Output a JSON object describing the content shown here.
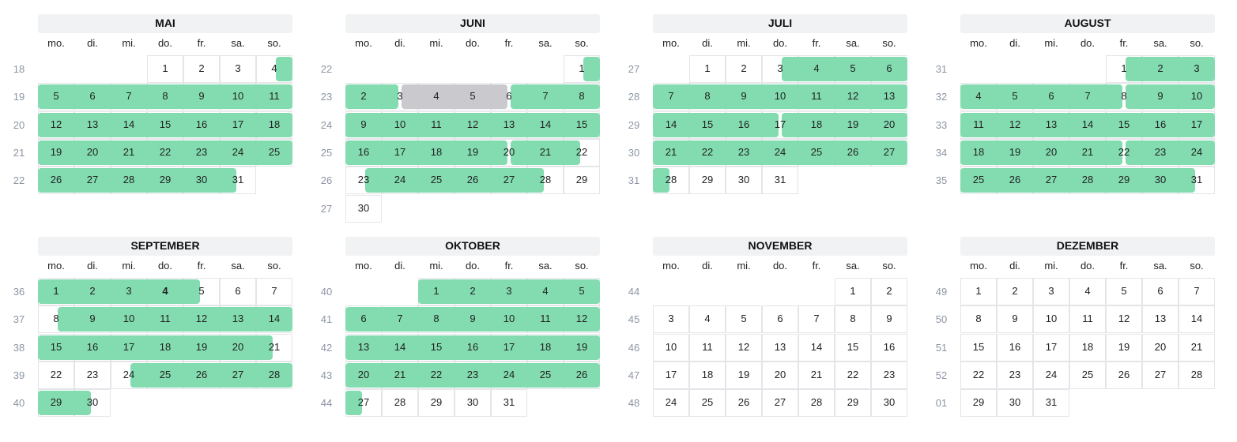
{
  "colors": {
    "booked": "#82dcb0",
    "blocked": "#c9c9ce",
    "header_bg": "#f1f2f4",
    "week_number": "#8c95a3"
  },
  "weekdays": [
    "mo.",
    "di.",
    "mi.",
    "do.",
    "fr.",
    "sa.",
    "so."
  ],
  "months": [
    {
      "name": "MAI",
      "first_weekday": 3,
      "days": 31,
      "weeks": [
        "18",
        "19",
        "20",
        "21",
        "22"
      ],
      "green": [
        [
          4,
          31
        ]
      ],
      "gray": []
    },
    {
      "name": "JUNI",
      "first_weekday": 6,
      "days": 30,
      "weeks": [
        "22",
        "23",
        "24",
        "25",
        "26",
        "27"
      ],
      "green": [
        [
          1,
          3
        ],
        [
          6,
          20
        ],
        [
          20,
          22
        ],
        [
          23,
          28
        ]
      ],
      "gray": [
        [
          3,
          6
        ]
      ]
    },
    {
      "name": "JULI",
      "first_weekday": 1,
      "days": 31,
      "weeks": [
        "27",
        "28",
        "29",
        "30",
        "31"
      ],
      "green": [
        [
          3,
          17
        ],
        [
          17,
          28
        ]
      ],
      "gray": []
    },
    {
      "name": "AUGUST",
      "first_weekday": 4,
      "days": 31,
      "weeks": [
        "31",
        "32",
        "33",
        "34",
        "35"
      ],
      "green": [
        [
          1,
          8
        ],
        [
          8,
          22
        ],
        [
          22,
          31
        ]
      ],
      "gray": []
    },
    {
      "name": "SEPTEMBER",
      "first_weekday": 0,
      "days": 30,
      "weeks": [
        "36",
        "37",
        "38",
        "39",
        "40"
      ],
      "green": [
        [
          1,
          5
        ],
        [
          8,
          21
        ],
        [
          24,
          30
        ]
      ],
      "gray": [],
      "bold_days": [
        4
      ]
    },
    {
      "name": "OKTOBER",
      "first_weekday": 2,
      "days": 31,
      "weeks": [
        "40",
        "41",
        "42",
        "43",
        "44"
      ],
      "green": [
        [
          1,
          27
        ]
      ],
      "gray": []
    },
    {
      "name": "NOVEMBER",
      "first_weekday": 5,
      "days": 30,
      "weeks": [
        "44",
        "45",
        "46",
        "47",
        "48"
      ],
      "green": [],
      "gray": []
    },
    {
      "name": "DEZEMBER",
      "first_weekday": 0,
      "days": 31,
      "weeks": [
        "49",
        "50",
        "51",
        "52",
        "01"
      ],
      "green": [],
      "gray": []
    }
  ]
}
